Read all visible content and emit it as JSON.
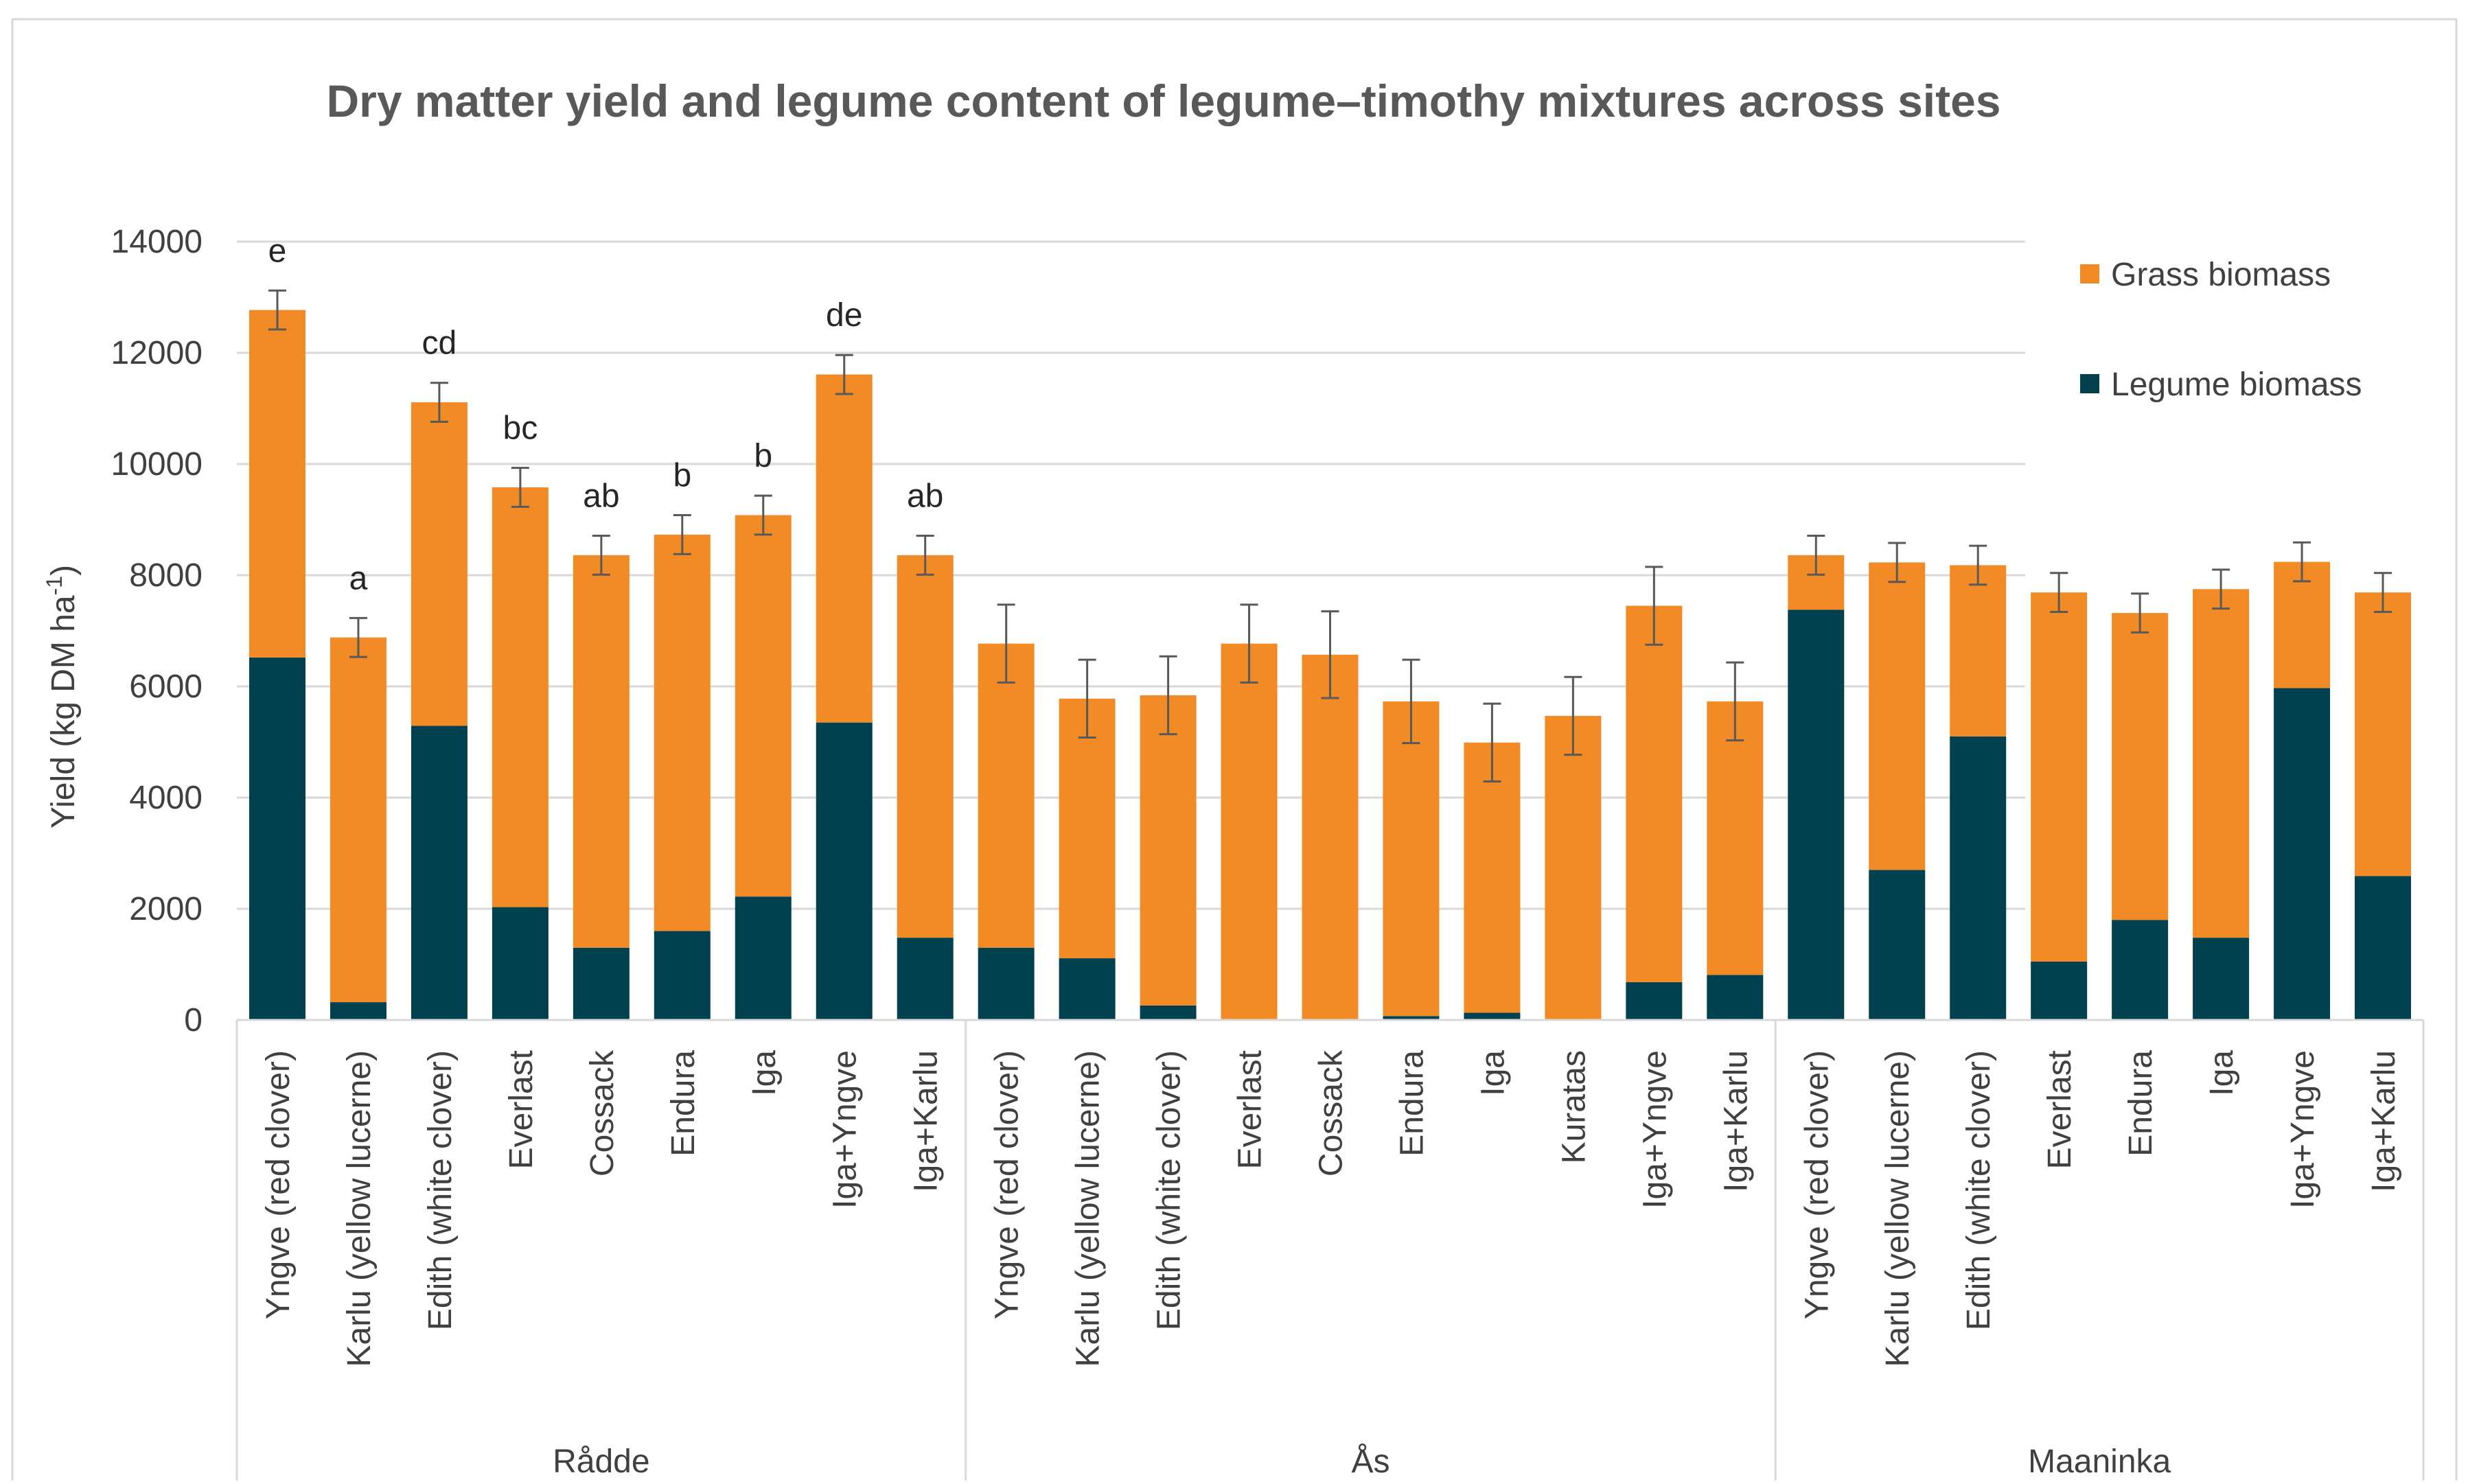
{
  "chart_data": {
    "type": "bar",
    "stacked": true,
    "title": "Dry matter yield and legume content of legume–timothy mixtures across sites",
    "ylabel_main": "Yield (kg DM ha",
    "ylabel_sup": "-1",
    "ylabel_close": ")",
    "xlabel": "",
    "ylim": [
      0,
      14000
    ],
    "yticks": [
      "0",
      "2000",
      "4000",
      "6000",
      "8000",
      "10000",
      "12000",
      "14000"
    ],
    "grid": true,
    "legend_position": "top-right",
    "colors": {
      "grass": "#F28A25",
      "legume": "#00404F",
      "grid": "#d9d9d9",
      "text": "#404040",
      "error": "#595959"
    },
    "legend": [
      {
        "key": "grass",
        "label": "Grass biomass"
      },
      {
        "key": "legume",
        "label": "Legume biomass"
      }
    ],
    "groups": [
      {
        "name": "Rådde",
        "size": 9
      },
      {
        "name": "Ås",
        "size": 10
      },
      {
        "name": "Maaninka",
        "size": 8
      }
    ],
    "categories": [
      "Yngve (red clover)",
      "Karlu (yellow lucerne)",
      "Edith (white clover)",
      "Everlast",
      "Cossack",
      "Endura",
      "Iga",
      "Iga+Yngve",
      "Iga+Karlu",
      "Yngve (red clover)",
      "Karlu (yellow lucerne)",
      "Edith (white clover)",
      "Everlast",
      "Cossack",
      "Endura",
      "Iga",
      "Kuratas",
      "Iga+Yngve",
      "Iga+Karlu",
      "Yngve (red clover)",
      "Karlu (yellow lucerne)",
      "Edith (white clover)",
      "Everlast",
      "Endura",
      "Iga",
      "Iga+Yngve",
      "Iga+Karlu"
    ],
    "series": [
      {
        "name": "Legume biomass",
        "values": [
          6520,
          320,
          5290,
          2030,
          1300,
          1600,
          2220,
          5350,
          1480,
          1300,
          1110,
          260,
          0,
          0,
          70,
          130,
          0,
          680,
          810,
          7380,
          2700,
          5100,
          1050,
          1800,
          1480,
          5970,
          2590
        ]
      },
      {
        "name": "Grass biomass",
        "values": [
          6250,
          6560,
          5820,
          7550,
          7060,
          7130,
          6860,
          6260,
          6880,
          5470,
          4670,
          5580,
          6770,
          6570,
          5660,
          4860,
          5470,
          6770,
          4920,
          980,
          5530,
          3080,
          6640,
          5520,
          6270,
          2270,
          5100
        ]
      }
    ],
    "totals": [
      12770,
      6880,
      11110,
      9580,
      8360,
      8730,
      9080,
      11610,
      8360,
      6770,
      5780,
      5840,
      6770,
      6570,
      5730,
      4990,
      5470,
      7450,
      5730,
      8360,
      8230,
      8180,
      7690,
      7320,
      7750,
      8240,
      7690
    ],
    "error": [
      350,
      350,
      350,
      350,
      350,
      350,
      350,
      350,
      350,
      700,
      700,
      700,
      700,
      780,
      750,
      700,
      700,
      700,
      700,
      350,
      350,
      350,
      350,
      350,
      350,
      350,
      350
    ],
    "letters": [
      "e",
      "a",
      "cd",
      "bc",
      "ab",
      "b",
      "b",
      "de",
      "ab",
      "",
      "",
      "",
      "",
      "",
      "",
      "",
      "",
      "",
      "",
      "",
      "",
      "",
      "",
      "",
      "",
      "",
      ""
    ]
  }
}
